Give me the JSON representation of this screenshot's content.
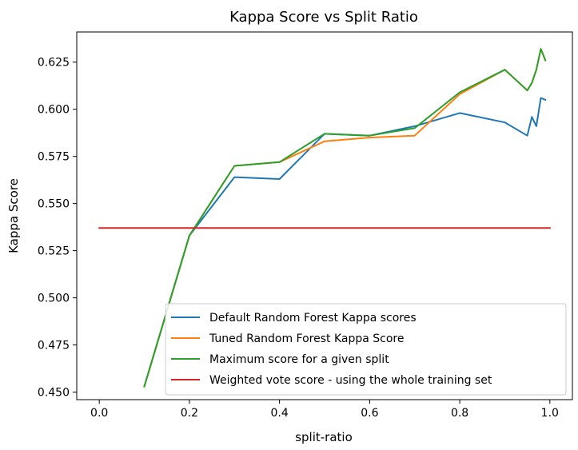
{
  "chart_data": {
    "type": "line",
    "title": "Kappa Score vs Split Ratio",
    "xlabel": "split-ratio",
    "ylabel": "Kappa Score",
    "xlim": [
      -0.05,
      1.05
    ],
    "ylim": [
      0.446,
      0.641
    ],
    "xticks": [
      0.0,
      0.2,
      0.4,
      0.6,
      0.8,
      1.0
    ],
    "xtick_labels": [
      "0.0",
      "0.2",
      "0.4",
      "0.6",
      "0.8",
      "1.0"
    ],
    "yticks": [
      0.45,
      0.475,
      0.5,
      0.525,
      0.55,
      0.575,
      0.6,
      0.625
    ],
    "ytick_labels": [
      "0.450",
      "0.475",
      "0.500",
      "0.525",
      "0.550",
      "0.575",
      "0.600",
      "0.625"
    ],
    "grid": false,
    "legend_position": "lower-right",
    "series": [
      {
        "name": "Default Random Forest Kappa scores",
        "color": "#1f77b4",
        "x": [
          0.1,
          0.2,
          0.3,
          0.4,
          0.5,
          0.6,
          0.7,
          0.8,
          0.9,
          0.95,
          0.96,
          0.97,
          0.98,
          0.99
        ],
        "y": [
          0.453,
          0.533,
          0.564,
          0.563,
          0.587,
          0.586,
          0.591,
          0.598,
          0.593,
          0.586,
          0.596,
          0.591,
          0.606,
          0.605
        ]
      },
      {
        "name": "Tuned Random Forest Kappa Score",
        "color": "#ff7f0e",
        "x": [
          0.1,
          0.2,
          0.3,
          0.4,
          0.5,
          0.6,
          0.7,
          0.8,
          0.9,
          0.95,
          0.96,
          0.97,
          0.98,
          0.99
        ],
        "y": [
          0.453,
          0.533,
          0.57,
          0.572,
          0.583,
          0.585,
          0.586,
          0.608,
          0.621,
          0.61,
          0.614,
          0.621,
          0.632,
          0.626
        ]
      },
      {
        "name": "Maximum score for a given split",
        "color": "#2ca02c",
        "x": [
          0.1,
          0.2,
          0.3,
          0.4,
          0.5,
          0.6,
          0.7,
          0.8,
          0.9,
          0.95,
          0.96,
          0.97,
          0.98,
          0.99
        ],
        "y": [
          0.453,
          0.533,
          0.57,
          0.572,
          0.587,
          0.586,
          0.59,
          0.609,
          0.621,
          0.61,
          0.614,
          0.621,
          0.632,
          0.626
        ]
      },
      {
        "name": "Weighted vote score - using the whole training set",
        "color": "#d62728",
        "x": [
          0.0,
          1.0
        ],
        "y": [
          0.537,
          0.537
        ]
      }
    ]
  }
}
